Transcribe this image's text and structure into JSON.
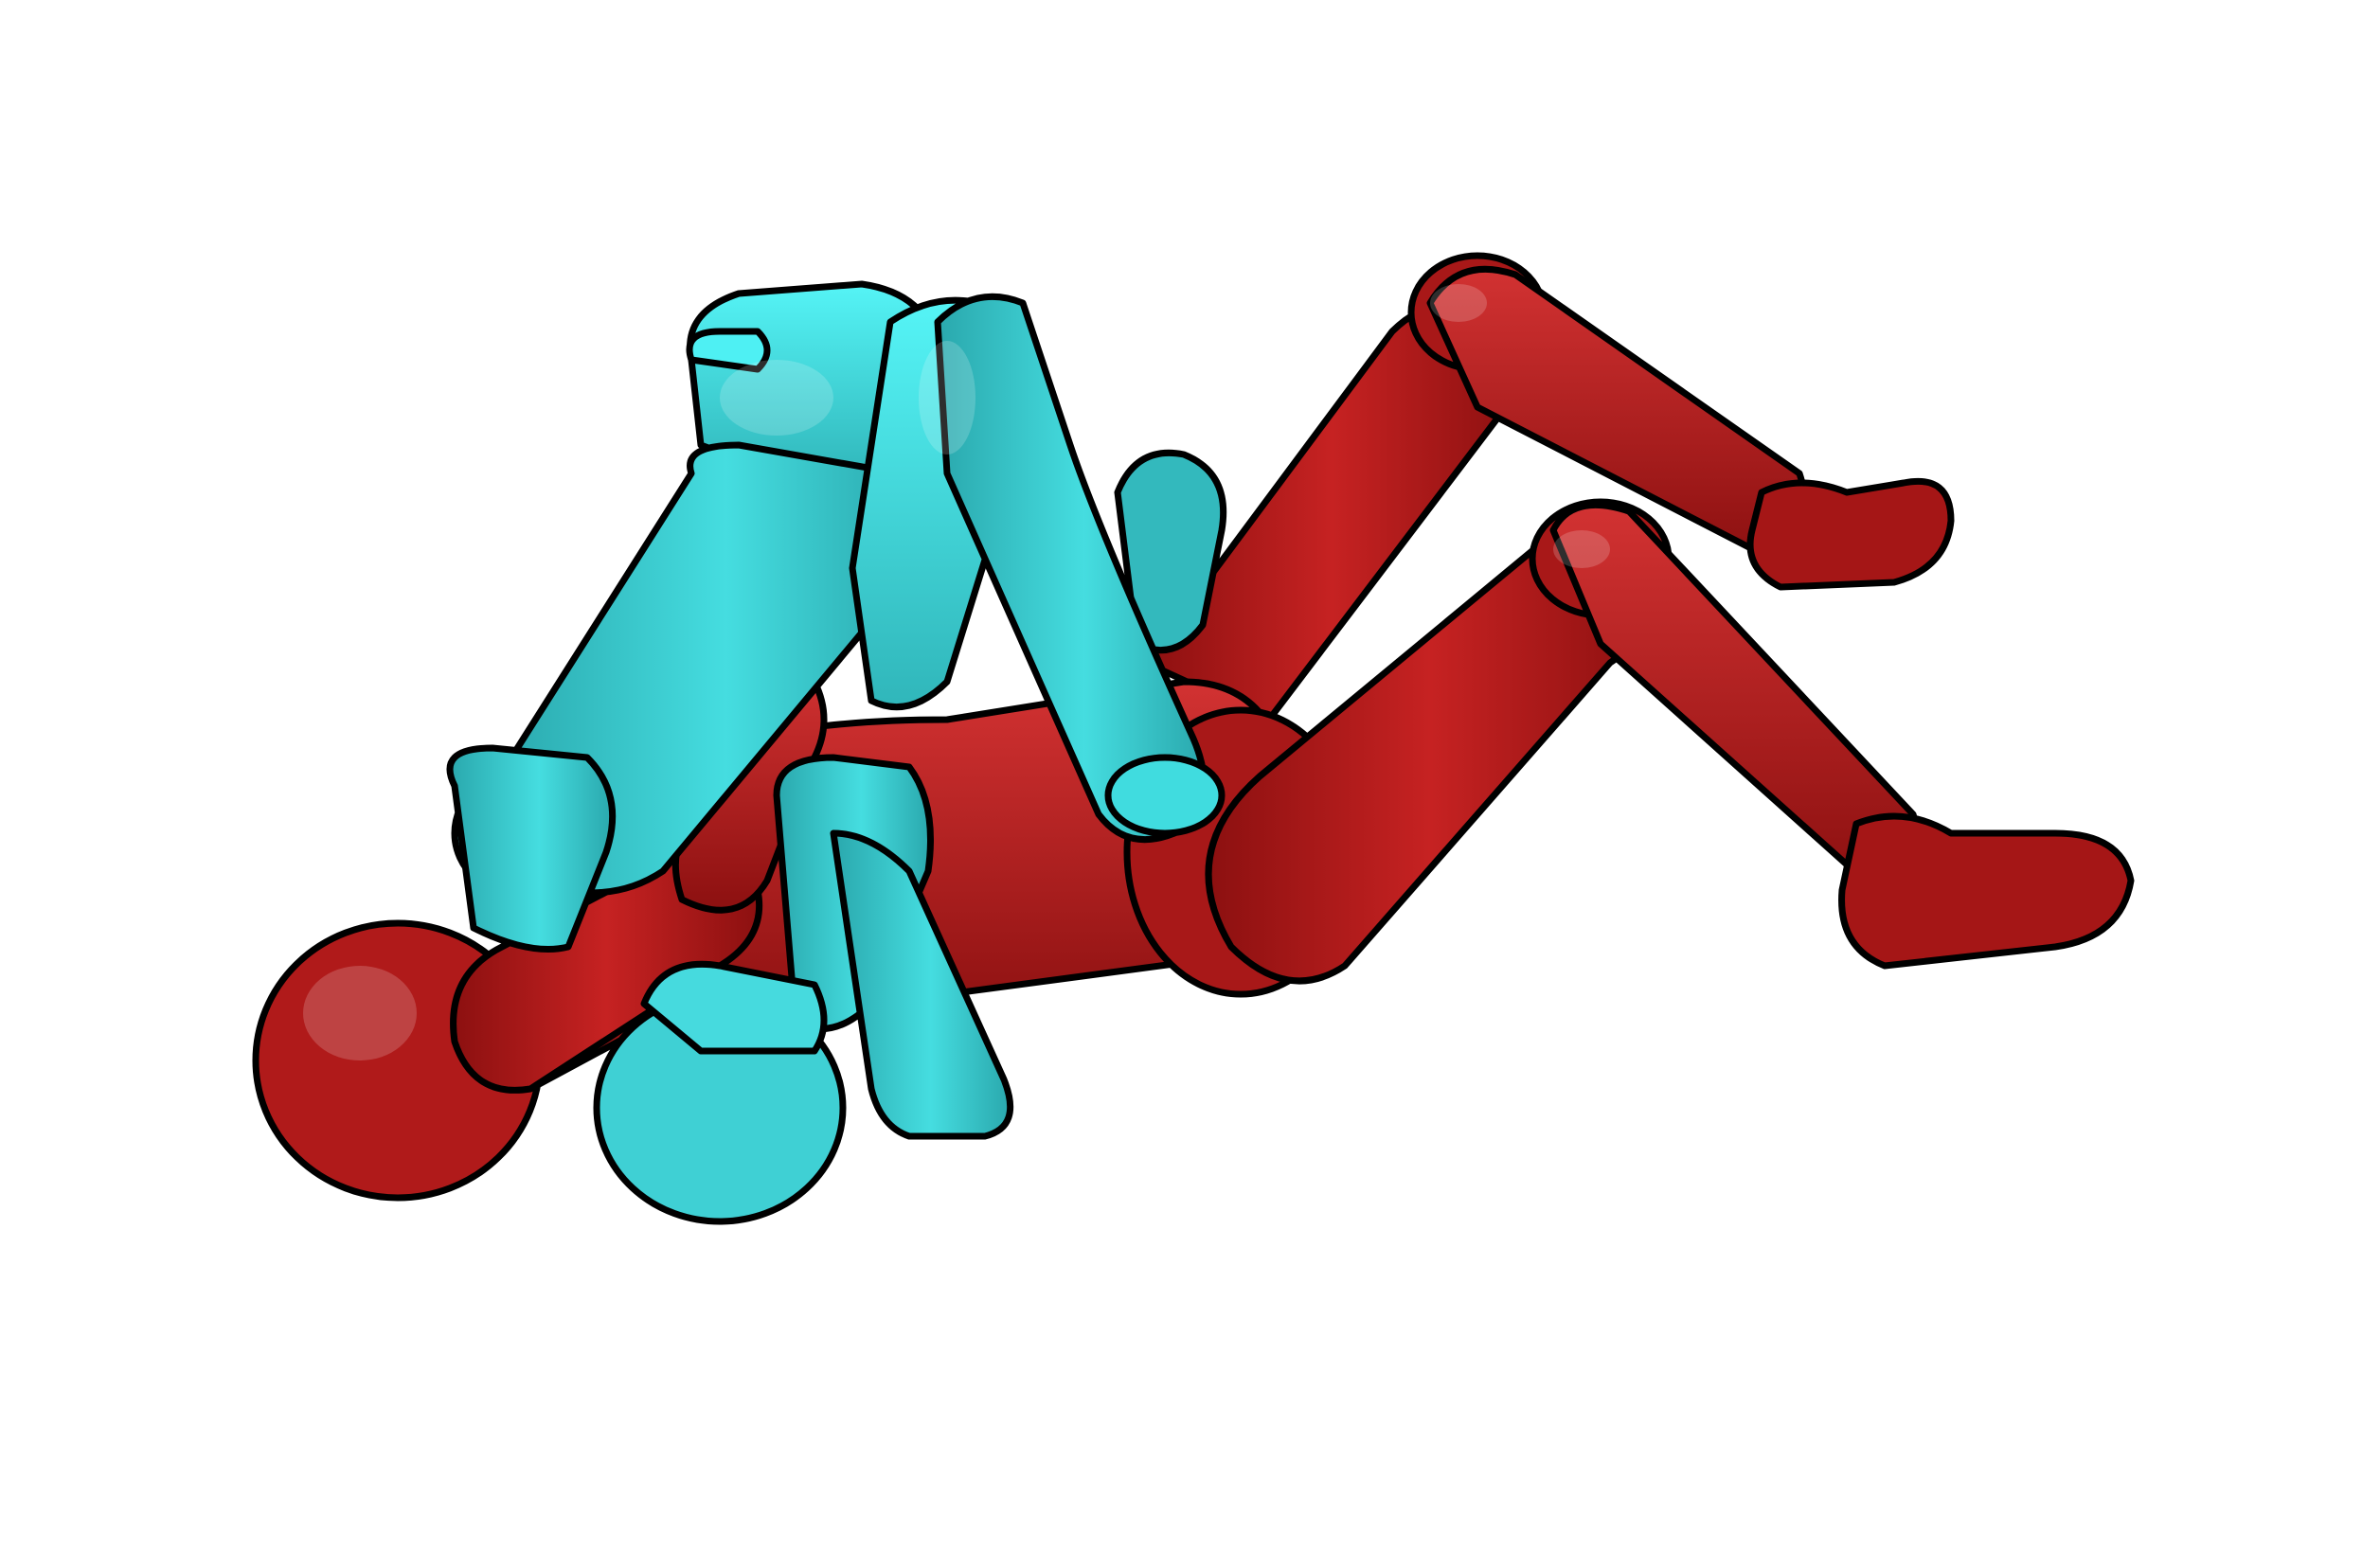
{
  "scene": {
    "background": "#ffffff",
    "figures": [
      {
        "id": "bottom-figure",
        "role": "mannequin lying on back",
        "colors": {
          "base": "#b81c1c",
          "shadow": "#8c1010",
          "highlight": "#e04646",
          "outline": "#000000"
        }
      },
      {
        "id": "top-figure",
        "role": "mannequin mounted on top",
        "colors": {
          "base": "#3fd2d6",
          "shadow": "#2aa8ad",
          "highlight": "#5ff6f8",
          "outline": "#000000"
        }
      }
    ]
  }
}
